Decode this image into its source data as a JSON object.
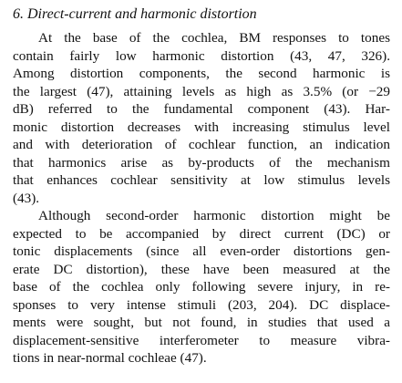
{
  "section": {
    "heading": "6. Direct-current and harmonic distortion"
  },
  "paragraphs": [
    {
      "lines": [
        "At the base of the cochlea, BM responses to tones",
        "contain fairly low harmonic distortion (43, 47, 326).",
        "Among distortion components, the second harmonic is",
        "the largest (47), attaining levels as high as 3.5% (or −29",
        "dB) referred to the fundamental component (43). Har-",
        "monic distortion decreases with increasing stimulus level",
        "and with deterioration of cochlear function, an indication",
        "that harmonics arise as by-products of the mechanism",
        "that enhances cochlear sensitivity at low stimulus levels",
        "(43)."
      ]
    },
    {
      "lines": [
        "Although second-order harmonic distortion might be",
        "expected to be accompanied by direct current (DC) or",
        "tonic displacements (since all even-order distortions gen-",
        "erate DC distortion), these have been measured at the",
        "base of the cochlea only following severe injury, in re-",
        "sponses to very intense stimuli (203, 204). DC displace-",
        "ments were sought, but not found, in studies that used a",
        "displacement-sensitive interferometer to measure vibra-",
        "tions in near-normal cochleae (47)."
      ]
    }
  ]
}
